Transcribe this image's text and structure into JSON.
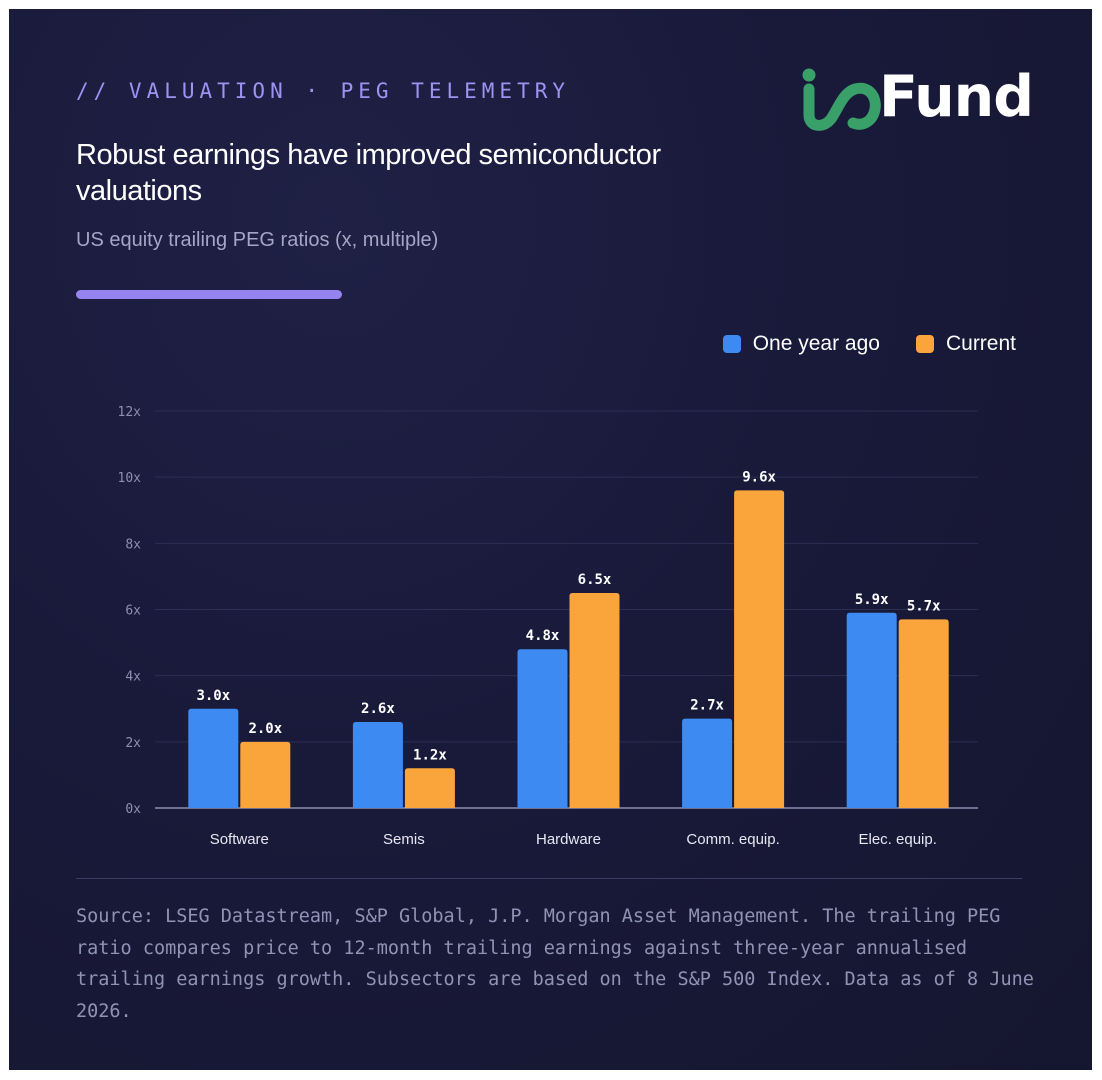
{
  "eyebrow": "// VALUATION · PEG TELEMETRY",
  "brand": {
    "logo_text": "ioFund",
    "logo_word": "Fund"
  },
  "title": "Robust earnings have improved semiconductor valuations",
  "subtitle": "US equity trailing PEG ratios (x, multiple)",
  "colors": {
    "one_year_ago": "#3d8bf2",
    "current": "#f9a53b",
    "accent": "#9584f0",
    "logo_green": "#3aa06a"
  },
  "chart_data": {
    "type": "bar",
    "title": "Robust earnings have improved semiconductor valuations",
    "subtitle": "US equity trailing PEG ratios (x, multiple)",
    "categories": [
      "Software",
      "Semis",
      "Hardware",
      "Comm. equip.",
      "Elec. equip."
    ],
    "series": [
      {
        "name": "One year ago",
        "values": [
          3.0,
          2.6,
          4.8,
          2.7,
          5.9
        ],
        "labels": [
          "3.0x",
          "2.6x",
          "4.8x",
          "2.7x",
          "5.9x"
        ]
      },
      {
        "name": "Current",
        "values": [
          2.0,
          1.2,
          6.5,
          9.6,
          5.7
        ],
        "labels": [
          "2.0x",
          "1.2x",
          "6.5x",
          "9.6x",
          "5.7x"
        ]
      }
    ],
    "ylim": [
      0,
      12
    ],
    "yticks": [
      0,
      2,
      4,
      6,
      8,
      10,
      12
    ],
    "ytick_labels": [
      "0x",
      "2x",
      "4x",
      "6x",
      "8x",
      "10x",
      "12x"
    ],
    "grid": true,
    "legend_position": "top-right"
  },
  "source": "Source: LSEG Datastream, S&P Global, J.P. Morgan Asset Management. The trailing PEG ratio compares price to 12-month trailing earnings against three-year annualised trailing earnings growth. Subsectors are based on the S&P 500 Index. Data as of 8 June 2026."
}
